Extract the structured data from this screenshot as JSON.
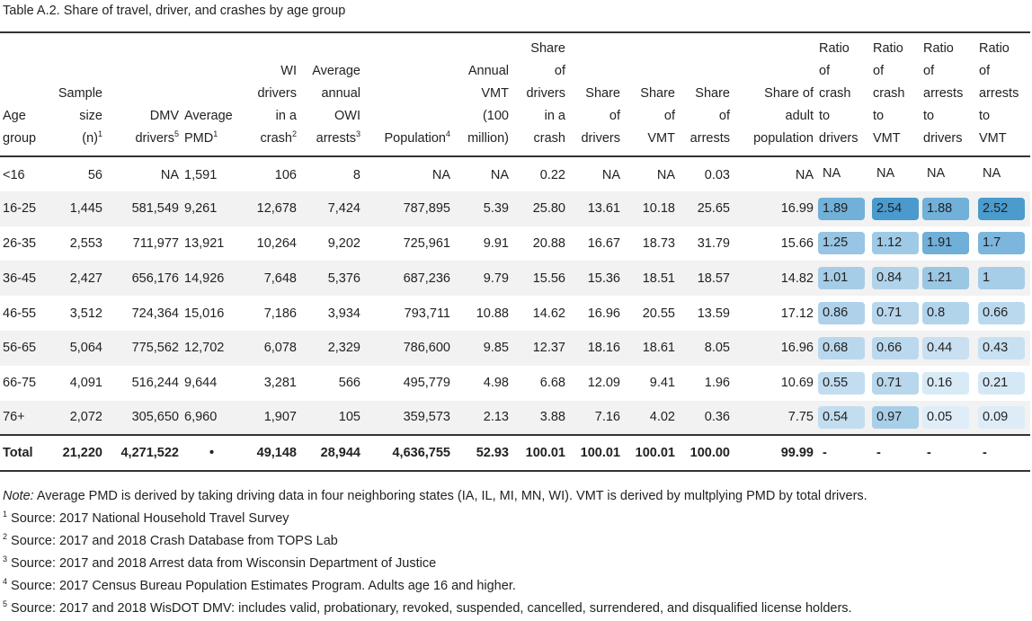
{
  "caption": "Table A.2. Share of travel, driver, and crashes by age group",
  "headers": {
    "age_group": [
      "Age",
      "group"
    ],
    "sample_size": [
      "Sample",
      "size",
      "(n)"
    ],
    "sample_size_sup": "1",
    "dmv_drivers": [
      "DMV",
      "drivers"
    ],
    "dmv_drivers_sup": "5",
    "avg_pmd": [
      "Average",
      "PMD"
    ],
    "avg_pmd_sup": "1",
    "wi_drivers": [
      "WI",
      "drivers",
      "in a",
      "crash"
    ],
    "wi_drivers_sup": "2",
    "owi_arrests": [
      "Average",
      "annual",
      "OWI",
      "arrests"
    ],
    "owi_arrests_sup": "3",
    "population": [
      "Population"
    ],
    "population_sup": "4",
    "annual_vmt": [
      "Annual",
      "VMT",
      "(100",
      "million)"
    ],
    "share_drivers_crash": [
      "Share",
      "of",
      "drivers",
      "in a",
      "crash"
    ],
    "share_drivers": [
      "Share",
      "of",
      "drivers"
    ],
    "share_vmt": [
      "Share",
      "of",
      "VMT"
    ],
    "share_arrests": [
      "Share",
      "of",
      "arrests"
    ],
    "share_adult_pop": [
      "Share of",
      "adult",
      "population"
    ],
    "ratio_crash_drivers": [
      "Ratio",
      "of",
      "crash",
      "to",
      "drivers"
    ],
    "ratio_crash_vmt": [
      "Ratio",
      "of",
      "crash",
      "to",
      "VMT"
    ],
    "ratio_arrests_drivers": [
      "Ratio",
      "of",
      "arrests",
      "to",
      "drivers"
    ],
    "ratio_arrests_vmt": [
      "Ratio",
      "of",
      "arrests",
      "to",
      "VMT"
    ]
  },
  "rows": [
    {
      "age": "<16",
      "sample": "56",
      "dmv": "NA",
      "pmd": "1,591",
      "wi": "106",
      "owi": "8",
      "pop": "NA",
      "vmt": "NA",
      "s_crash": "0.22",
      "s_drivers": "NA",
      "s_vmt": "NA",
      "s_arrests": "0.03",
      "s_adult": "NA",
      "r1": "NA",
      "r2": "NA",
      "r3": "NA",
      "r4": "NA"
    },
    {
      "age": "16-25",
      "sample": "1,445",
      "dmv": "581,549",
      "pmd": "9,261",
      "wi": "12,678",
      "owi": "7,424",
      "pop": "787,895",
      "vmt": "5.39",
      "s_crash": "25.80",
      "s_drivers": "13.61",
      "s_vmt": "10.18",
      "s_arrests": "25.65",
      "s_adult": "16.99",
      "r1": "1.89",
      "r2": "2.54",
      "r3": "1.88",
      "r4": "2.52"
    },
    {
      "age": "26-35",
      "sample": "2,553",
      "dmv": "711,977",
      "pmd": "13,921",
      "wi": "10,264",
      "owi": "9,202",
      "pop": "725,961",
      "vmt": "9.91",
      "s_crash": "20.88",
      "s_drivers": "16.67",
      "s_vmt": "18.73",
      "s_arrests": "31.79",
      "s_adult": "15.66",
      "r1": "1.25",
      "r2": "1.12",
      "r3": "1.91",
      "r4": "1.7"
    },
    {
      "age": "36-45",
      "sample": "2,427",
      "dmv": "656,176",
      "pmd": "14,926",
      "wi": "7,648",
      "owi": "5,376",
      "pop": "687,236",
      "vmt": "9.79",
      "s_crash": "15.56",
      "s_drivers": "15.36",
      "s_vmt": "18.51",
      "s_arrests": "18.57",
      "s_adult": "14.82",
      "r1": "1.01",
      "r2": "0.84",
      "r3": "1.21",
      "r4": "1"
    },
    {
      "age": "46-55",
      "sample": "3,512",
      "dmv": "724,364",
      "pmd": "15,016",
      "wi": "7,186",
      "owi": "3,934",
      "pop": "793,711",
      "vmt": "10.88",
      "s_crash": "14.62",
      "s_drivers": "16.96",
      "s_vmt": "20.55",
      "s_arrests": "13.59",
      "s_adult": "17.12",
      "r1": "0.86",
      "r2": "0.71",
      "r3": "0.8",
      "r4": "0.66"
    },
    {
      "age": "56-65",
      "sample": "5,064",
      "dmv": "775,562",
      "pmd": "12,702",
      "wi": "6,078",
      "owi": "2,329",
      "pop": "786,600",
      "vmt": "9.85",
      "s_crash": "12.37",
      "s_drivers": "18.16",
      "s_vmt": "18.61",
      "s_arrests": "8.05",
      "s_adult": "16.96",
      "r1": "0.68",
      "r2": "0.66",
      "r3": "0.44",
      "r4": "0.43"
    },
    {
      "age": "66-75",
      "sample": "4,091",
      "dmv": "516,244",
      "pmd": "9,644",
      "wi": "3,281",
      "owi": "566",
      "pop": "495,779",
      "vmt": "4.98",
      "s_crash": "6.68",
      "s_drivers": "12.09",
      "s_vmt": "9.41",
      "s_arrests": "1.96",
      "s_adult": "10.69",
      "r1": "0.55",
      "r2": "0.71",
      "r3": "0.16",
      "r4": "0.21"
    },
    {
      "age": "76+",
      "sample": "2,072",
      "dmv": "305,650",
      "pmd": "6,960",
      "wi": "1,907",
      "owi": "105",
      "pop": "359,573",
      "vmt": "2.13",
      "s_crash": "3.88",
      "s_drivers": "7.16",
      "s_vmt": "4.02",
      "s_arrests": "0.36",
      "s_adult": "7.75",
      "r1": "0.54",
      "r2": "0.97",
      "r3": "0.05",
      "r4": "0.09"
    }
  ],
  "total": {
    "age": "Total",
    "sample": "21,220",
    "dmv": "4,271,522",
    "pmd": "•",
    "wi": "49,148",
    "owi": "28,944",
    "pop": "4,636,755",
    "vmt": "52.93",
    "s_crash": "100.01",
    "s_drivers": "100.01",
    "s_vmt": "100.01",
    "s_arrests": "100.00",
    "s_adult": "99.99",
    "r1": "-",
    "r2": "-",
    "r3": "-",
    "r4": "-"
  },
  "heat_colors": {
    "low": "#e2eff9",
    "high": "#4a9acd"
  },
  "notes": {
    "note_label": "Note:",
    "note_text": " Average PMD is derived by taking driving data in four neighboring states (IA, IL, MI, MN, WI). VMT is derived by multplying PMD by total drivers.",
    "footnotes": [
      {
        "sup": "1",
        "text": " Source: 2017 National Household Travel Survey"
      },
      {
        "sup": "2",
        "text": " Source: 2017 and 2018 Crash Database from TOPS Lab"
      },
      {
        "sup": "3",
        "text": " Source: 2017 and 2018 Arrest data from Wisconsin Department of Justice"
      },
      {
        "sup": "4",
        "text": " Source: 2017 Census Bureau Population Estimates Program. Adults age 16 and higher."
      },
      {
        "sup": "5",
        "text": " Source: 2017 and 2018 WisDOT DMV: includes valid, probationary, revoked, suspended, cancelled, surrendered, and disqualified license holders."
      }
    ]
  }
}
